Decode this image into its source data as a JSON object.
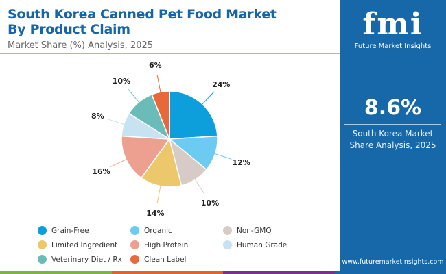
{
  "header": {
    "title": "South Korea Canned Pet Food Market By Product Claim",
    "subtitle": "Market Share (%) Analysis, 2025"
  },
  "side_panel": {
    "logo_text": "fmi",
    "logo_name": "Future Market Insights",
    "stat": "8.6%",
    "stat_label": "South Korea Market Share Analysis, 2025",
    "url": "www.futuremarketinsights.com"
  },
  "chart_data": {
    "type": "pie",
    "title": "South Korea Canned Pet Food Market By Product Claim",
    "subtitle": "Market Share (%) Analysis, 2025",
    "start": "top",
    "direction": "clockwise",
    "legend": "bottom",
    "categories": [
      "Grain-Free",
      "Organic",
      "Non-GMO",
      "Limited Ingredient",
      "High Protein",
      "Human Grade",
      "Veterinary Diet / Rx",
      "Clean Label"
    ],
    "values": [
      24,
      12,
      10,
      14,
      16,
      8,
      10,
      6
    ],
    "labels": [
      "24%",
      "12%",
      "10%",
      "14%",
      "16%",
      "8%",
      "10%",
      "6%"
    ],
    "colors": [
      "#0d9fdc",
      "#6dcbf1",
      "#d7cbc8",
      "#ecc76c",
      "#eda08f",
      "#c7e3f2",
      "#6bbcb9",
      "#e8683a"
    ]
  },
  "bottom_bar_colors": [
    "#7cb342",
    "#e2622b",
    "#7b2f8e",
    "#1668a8"
  ]
}
